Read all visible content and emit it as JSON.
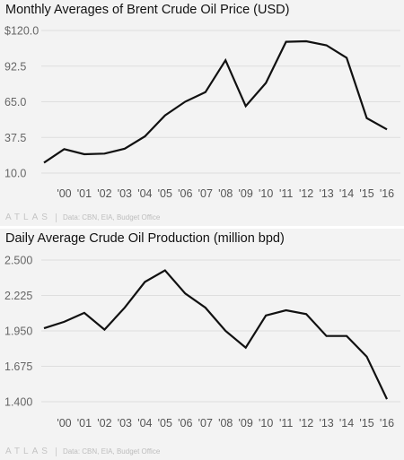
{
  "charts": [
    {
      "title": "Monthly Averages of Brent Crude Oil Price (USD)",
      "brand": "ATLAS",
      "source": "Data: CBN, EIA, Budget Office",
      "chart_data": {
        "type": "line",
        "title": "Monthly Averages of Brent Crude Oil Price (USD)",
        "xlabel": "",
        "ylabel": "",
        "x": [
          1999,
          2000,
          2001,
          2002,
          2003,
          2004,
          2005,
          2006,
          2007,
          2008,
          2009,
          2010,
          2011,
          2012,
          2013,
          2014,
          2015,
          2016
        ],
        "x_tick_values": [
          2000,
          2001,
          2002,
          2003,
          2004,
          2005,
          2006,
          2007,
          2008,
          2009,
          2010,
          2011,
          2012,
          2013,
          2014,
          2015,
          2016
        ],
        "x_tick_labels": [
          "'00",
          "'01",
          "'02",
          "'03",
          "'04",
          "'05",
          "'06",
          "'07",
          "'08",
          "'09",
          "'10",
          "'11",
          "'12",
          "'13",
          "'14",
          "'15",
          "'16"
        ],
        "y_ticks": [
          10,
          37.5,
          65,
          92.5,
          120
        ],
        "y_tick_labels": [
          "10.0",
          "37.5",
          "65.0",
          "92.5",
          "$120.0"
        ],
        "ylim": [
          10,
          120
        ],
        "grid": true,
        "series": [
          {
            "values": [
              18,
              28.5,
              24.5,
              25,
              28.8,
              38.3,
              54.5,
              65.1,
              72.4,
              97,
              61.7,
              79.5,
              111.3,
              111.7,
              108.6,
              98.9,
              52.4,
              43.7
            ]
          }
        ]
      }
    },
    {
      "title": "Daily Average Crude Oil Production (million bpd)",
      "brand": "ATLAS",
      "source": "Data: CBN, EIA, Budget Office",
      "chart_data": {
        "type": "line",
        "title": "Daily Average Crude Oil Production (million bpd)",
        "xlabel": "",
        "ylabel": "",
        "x": [
          1999,
          2000,
          2001,
          2002,
          2003,
          2004,
          2005,
          2006,
          2007,
          2008,
          2009,
          2010,
          2011,
          2012,
          2013,
          2014,
          2015,
          2016
        ],
        "x_tick_values": [
          2000,
          2001,
          2002,
          2003,
          2004,
          2005,
          2006,
          2007,
          2008,
          2009,
          2010,
          2011,
          2012,
          2013,
          2014,
          2015,
          2016
        ],
        "x_tick_labels": [
          "'00",
          "'01",
          "'02",
          "'03",
          "'04",
          "'05",
          "'06",
          "'07",
          "'08",
          "'09",
          "'10",
          "'11",
          "'12",
          "'13",
          "'14",
          "'15",
          "'16"
        ],
        "y_ticks": [
          1.4,
          1.675,
          1.95,
          2.225,
          2.5
        ],
        "y_tick_labels": [
          "1.400",
          "1.675",
          "1.950",
          "2.225",
          "2.500"
        ],
        "ylim": [
          1.4,
          2.5
        ],
        "grid": true,
        "series": [
          {
            "values": [
              1.97,
              2.02,
              2.09,
              1.96,
              2.13,
              2.33,
              2.42,
              2.24,
              2.13,
              1.95,
              1.82,
              2.07,
              2.11,
              2.08,
              1.91,
              1.91,
              1.75,
              1.42
            ]
          }
        ]
      }
    }
  ]
}
